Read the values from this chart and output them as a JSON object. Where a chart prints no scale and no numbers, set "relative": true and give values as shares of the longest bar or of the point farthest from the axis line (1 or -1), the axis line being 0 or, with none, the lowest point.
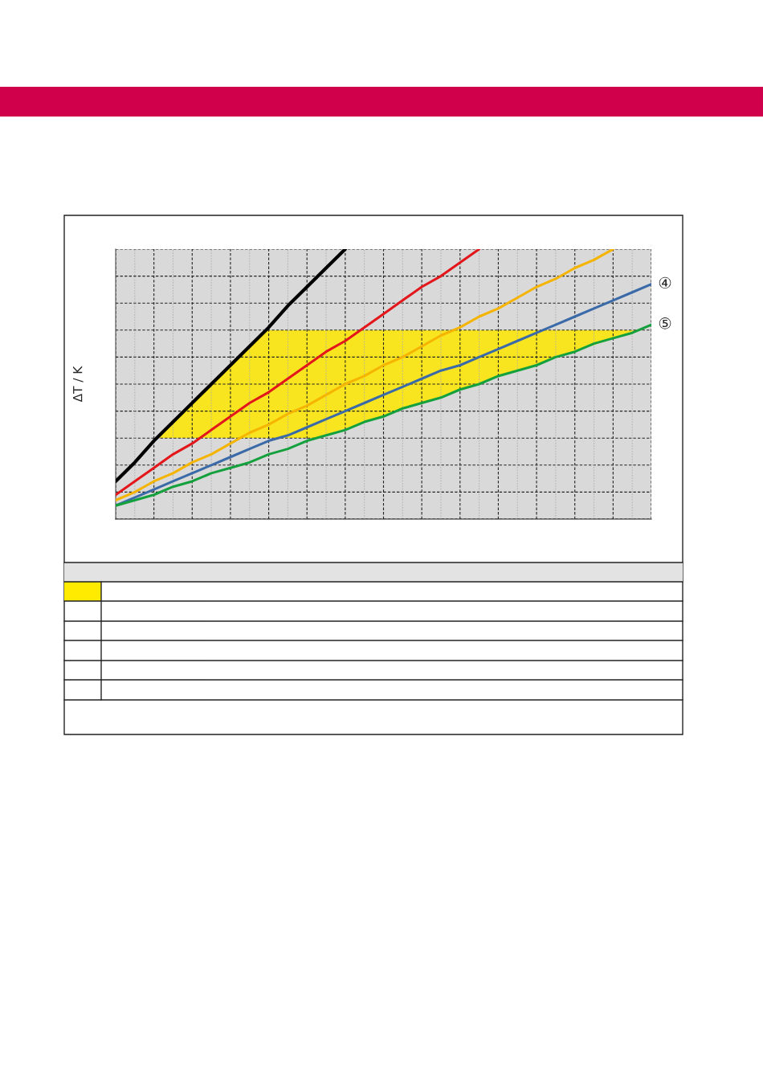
{
  "chart_data": {
    "type": "line",
    "ylabel": "ΔT / K",
    "relative": true,
    "grid": true,
    "legend": false,
    "categories": [
      null,
      null,
      null,
      null,
      null,
      null,
      null,
      null,
      null,
      null,
      null,
      null,
      null,
      null,
      null,
      null,
      null,
      null,
      null,
      null,
      null,
      null,
      null,
      null,
      null,
      null,
      null,
      null,
      null
    ],
    "series": [
      {
        "color": "#000000",
        "values": [
          0.14,
          0.21,
          0.29,
          0.36,
          0.43,
          0.5,
          0.57,
          0.64,
          0.71,
          0.79,
          0.86,
          0.93,
          1.0,
          null,
          null,
          null,
          null,
          null,
          null,
          null,
          null,
          null,
          null,
          null,
          null,
          null,
          null,
          null,
          null
        ]
      },
      {
        "color": "#e3161b",
        "values": [
          0.09,
          0.14,
          0.19,
          0.24,
          0.28,
          0.33,
          0.38,
          0.43,
          0.47,
          0.52,
          0.57,
          0.62,
          0.66,
          0.71,
          0.76,
          0.81,
          0.86,
          0.9,
          0.95,
          1.0,
          null,
          null,
          null,
          null,
          null,
          null,
          null,
          null,
          null
        ]
      },
      {
        "color": "#f5b400",
        "values": [
          0.07,
          0.1,
          0.14,
          0.17,
          0.21,
          0.24,
          0.28,
          0.32,
          0.35,
          0.39,
          0.42,
          0.46,
          0.5,
          0.53,
          0.57,
          0.6,
          0.64,
          0.68,
          0.71,
          0.75,
          0.78,
          0.82,
          0.86,
          0.89,
          0.93,
          0.96,
          1.0,
          null,
          null
        ]
      },
      {
        "name": "④",
        "color": "#3a6aa8",
        "values": [
          0.05,
          0.08,
          0.11,
          0.14,
          0.17,
          0.2,
          0.23,
          0.26,
          0.29,
          0.31,
          0.34,
          0.37,
          0.4,
          0.43,
          0.46,
          0.49,
          0.52,
          0.55,
          0.57,
          0.6,
          0.63,
          0.66,
          0.69,
          0.72,
          0.75,
          0.78,
          0.81,
          0.84,
          0.87
        ]
      },
      {
        "name": "⑤",
        "color": "#14a03c",
        "values": [
          0.05,
          0.07,
          0.09,
          0.12,
          0.14,
          0.17,
          0.19,
          0.21,
          0.24,
          0.26,
          0.29,
          0.31,
          0.33,
          0.36,
          0.38,
          0.41,
          0.43,
          0.45,
          0.48,
          0.5,
          0.53,
          0.55,
          0.57,
          0.6,
          0.62,
          0.65,
          0.67,
          0.69,
          0.72
        ]
      }
    ],
    "bands": [
      {
        "axis": "y",
        "from": 0.3,
        "to": 0.7,
        "color": "#f8e520"
      }
    ]
  }
}
